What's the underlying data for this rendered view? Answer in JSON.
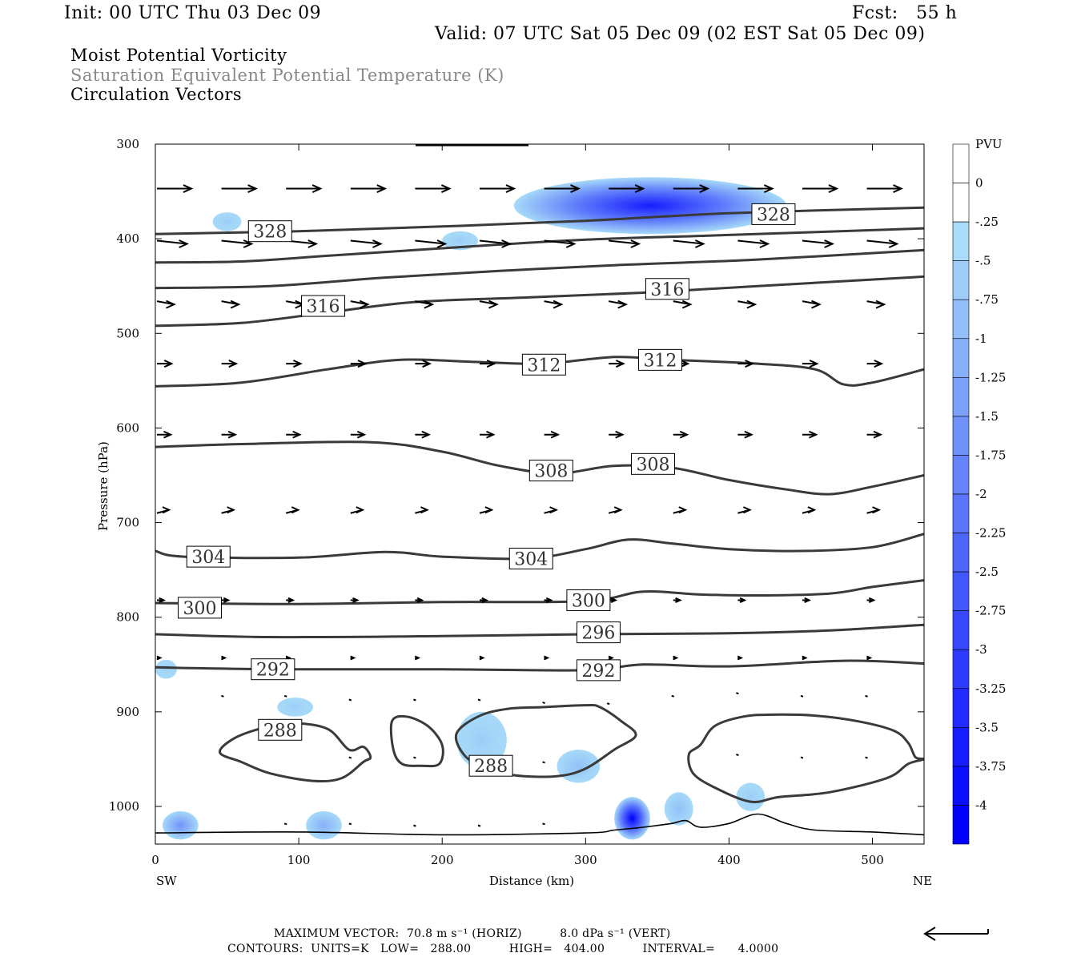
{
  "header": {
    "init": "Init: 00 UTC Thu 03 Dec 09",
    "fcst": "Fcst:   55 h",
    "valid": "Valid: 07 UTC Sat 05 Dec 09 (02 EST Sat 05 Dec 09)",
    "line1": "Moist Potential Vorticity",
    "line2": "Saturation Equivalent Potential Temperature (K)",
    "line3": "Circulation Vectors"
  },
  "footer": {
    "max_vector": "MAXIMUM VECTOR:  70.8 m s⁻¹ (HORIZ)          8.0 dPa s⁻¹ (VERT)",
    "contours": "CONTOURS:  UNITS=K   LOW=   288.00          HIGH=   404.00          INTERVAL=      4.0000"
  },
  "colors": {
    "contour": "#3a3a3a",
    "mpv_light": "#a8dcf8",
    "mpv_dark": "#0000ff"
  },
  "chart_data": {
    "type": "contour-cross-section",
    "title": "Moist Potential Vorticity",
    "xlabel": "Distance (km)",
    "ylabel": "Pressure (hPa)",
    "xlim": [
      0,
      536
    ],
    "ylim": [
      1040,
      300
    ],
    "xticks": [
      0,
      100,
      200,
      300,
      400,
      500
    ],
    "yticks": [
      300,
      400,
      500,
      600,
      700,
      800,
      900,
      1000
    ],
    "x_end_labels": {
      "left": "SW",
      "right": "NE"
    },
    "colorbar": {
      "title": "PVU",
      "levels": [
        "0",
        "-.25",
        "-.5",
        "-.75",
        "-1",
        "-1.25",
        "-1.5",
        "-1.75",
        "-2",
        "-2.25",
        "-2.5",
        "-2.75",
        "-3",
        "-3.25",
        "-3.5",
        "-3.75",
        "-4"
      ]
    },
    "contour_labels": [
      {
        "value": "328",
        "x": 80,
        "p": 392
      },
      {
        "value": "328",
        "x": 431,
        "p": 374
      },
      {
        "value": "316",
        "x": 117,
        "p": 471
      },
      {
        "value": "316",
        "x": 357,
        "p": 453
      },
      {
        "value": "312",
        "x": 271,
        "p": 533
      },
      {
        "value": "312",
        "x": 352,
        "p": 528
      },
      {
        "value": "308",
        "x": 276,
        "p": 645
      },
      {
        "value": "308",
        "x": 347,
        "p": 638
      },
      {
        "value": "304",
        "x": 37,
        "p": 736
      },
      {
        "value": "304",
        "x": 262,
        "p": 738
      },
      {
        "value": "300",
        "x": 31,
        "p": 790
      },
      {
        "value": "300",
        "x": 302,
        "p": 782
      },
      {
        "value": "296",
        "x": 309,
        "p": 816
      },
      {
        "value": "292",
        "x": 82,
        "p": 855
      },
      {
        "value": "292",
        "x": 309,
        "p": 856
      },
      {
        "value": "288",
        "x": 87,
        "p": 919
      },
      {
        "value": "288",
        "x": 234,
        "p": 957
      }
    ],
    "contours": [
      {
        "level": 328,
        "points": [
          [
            0,
            395
          ],
          [
            100,
            392
          ],
          [
            200,
            387
          ],
          [
            300,
            381
          ],
          [
            400,
            373
          ],
          [
            536,
            367
          ]
        ]
      },
      {
        "level": 324,
        "points": [
          [
            0,
            425
          ],
          [
            60,
            424
          ],
          [
            120,
            418
          ],
          [
            200,
            410
          ],
          [
            300,
            401
          ],
          [
            400,
            396
          ],
          [
            536,
            389
          ]
        ]
      },
      {
        "level": 320,
        "points": [
          [
            0,
            452
          ],
          [
            80,
            450
          ],
          [
            160,
            441
          ],
          [
            240,
            434
          ],
          [
            320,
            428
          ],
          [
            420,
            422
          ],
          [
            536,
            412
          ]
        ]
      },
      {
        "level": 316,
        "points": [
          [
            0,
            492
          ],
          [
            60,
            489
          ],
          [
            120,
            478
          ],
          [
            180,
            467
          ],
          [
            260,
            462
          ],
          [
            340,
            457
          ],
          [
            420,
            450
          ],
          [
            536,
            440
          ]
        ]
      },
      {
        "level": 312,
        "points": [
          [
            0,
            556
          ],
          [
            60,
            552
          ],
          [
            120,
            538
          ],
          [
            170,
            528
          ],
          [
            220,
            530
          ],
          [
            270,
            532
          ],
          [
            320,
            525
          ],
          [
            360,
            528
          ],
          [
            420,
            532
          ],
          [
            460,
            538
          ],
          [
            480,
            554
          ],
          [
            500,
            552
          ],
          [
            536,
            538
          ]
        ]
      },
      {
        "level": 308,
        "points": [
          [
            0,
            620
          ],
          [
            60,
            617
          ],
          [
            150,
            615
          ],
          [
            200,
            625
          ],
          [
            240,
            640
          ],
          [
            280,
            648
          ],
          [
            320,
            640
          ],
          [
            360,
            642
          ],
          [
            400,
            655
          ],
          [
            440,
            665
          ],
          [
            470,
            670
          ],
          [
            500,
            662
          ],
          [
            536,
            650
          ]
        ]
      },
      {
        "level": 304,
        "points": [
          [
            0,
            730
          ],
          [
            20,
            736
          ],
          [
            100,
            737
          ],
          [
            160,
            731
          ],
          [
            200,
            736
          ],
          [
            260,
            738
          ],
          [
            300,
            728
          ],
          [
            330,
            718
          ],
          [
            360,
            722
          ],
          [
            400,
            728
          ],
          [
            450,
            730
          ],
          [
            500,
            726
          ],
          [
            536,
            712
          ]
        ]
      },
      {
        "level": 300,
        "points": [
          [
            0,
            785
          ],
          [
            100,
            786
          ],
          [
            200,
            784
          ],
          [
            300,
            783
          ],
          [
            340,
            773
          ],
          [
            380,
            776
          ],
          [
            420,
            777
          ],
          [
            470,
            775
          ],
          [
            500,
            768
          ],
          [
            536,
            761
          ]
        ]
      },
      {
        "level": 296,
        "points": [
          [
            0,
            818
          ],
          [
            80,
            821
          ],
          [
            200,
            820
          ],
          [
            300,
            818
          ],
          [
            400,
            817
          ],
          [
            470,
            814
          ],
          [
            536,
            808
          ]
        ]
      },
      {
        "level": 292,
        "points": [
          [
            0,
            853
          ],
          [
            80,
            855
          ],
          [
            200,
            855
          ],
          [
            300,
            856
          ],
          [
            340,
            850
          ],
          [
            400,
            852
          ],
          [
            480,
            846
          ],
          [
            536,
            849
          ]
        ]
      }
    ],
    "closed_contours": [
      {
        "level": 288,
        "points": [
          [
            45,
            943
          ],
          [
            55,
            928
          ],
          [
            75,
            917
          ],
          [
            95,
            912
          ],
          [
            120,
            918
          ],
          [
            135,
            940
          ],
          [
            145,
            937
          ],
          [
            150,
            948
          ],
          [
            145,
            953
          ],
          [
            130,
            970
          ],
          [
            110,
            973
          ],
          [
            80,
            965
          ],
          [
            60,
            953
          ]
        ]
      },
      {
        "level": 288,
        "points": [
          [
            165,
            910
          ],
          [
            175,
            905
          ],
          [
            190,
            915
          ],
          [
            200,
            935
          ],
          [
            198,
            955
          ],
          [
            185,
            957
          ],
          [
            172,
            955
          ],
          [
            166,
            940
          ]
        ]
      },
      {
        "level": 288,
        "points": [
          [
            210,
            923
          ],
          [
            225,
            905
          ],
          [
            245,
            897
          ],
          [
            270,
            895
          ],
          [
            300,
            893
          ],
          [
            310,
            895
          ],
          [
            325,
            910
          ],
          [
            335,
            925
          ],
          [
            320,
            940
          ],
          [
            300,
            960
          ],
          [
            280,
            968
          ],
          [
            250,
            967
          ],
          [
            228,
            958
          ],
          [
            215,
            945
          ]
        ]
      },
      {
        "level": 288,
        "points": [
          [
            380,
            935
          ],
          [
            390,
            915
          ],
          [
            410,
            905
          ],
          [
            430,
            903
          ],
          [
            460,
            904
          ],
          [
            490,
            910
          ],
          [
            515,
            920
          ],
          [
            525,
            933
          ],
          [
            530,
            948
          ],
          [
            536,
            950
          ],
          [
            525,
            955
          ],
          [
            510,
            970
          ],
          [
            470,
            985
          ],
          [
            435,
            990
          ],
          [
            415,
            995
          ],
          [
            390,
            980
          ],
          [
            375,
            965
          ],
          [
            372,
            945
          ]
        ]
      }
    ],
    "mpv_regions": [
      {
        "min_pvu": -3.5,
        "x": [
          250,
          440
        ],
        "p": [
          335,
          395
        ]
      },
      {
        "min_pvu": -0.5,
        "x": [
          40,
          60
        ],
        "p": [
          372,
          392
        ]
      },
      {
        "min_pvu": -0.5,
        "x": [
          200,
          225
        ],
        "p": [
          392,
          412
        ]
      },
      {
        "min_pvu": -0.5,
        "x": [
          0,
          15
        ],
        "p": [
          845,
          865
        ]
      },
      {
        "min_pvu": -0.5,
        "x": [
          85,
          110
        ],
        "p": [
          885,
          905
        ]
      },
      {
        "min_pvu": -0.5,
        "x": [
          210,
          245
        ],
        "p": [
          900,
          960
        ]
      },
      {
        "min_pvu": -0.75,
        "x": [
          280,
          310
        ],
        "p": [
          940,
          975
        ]
      },
      {
        "min_pvu": -4,
        "x": [
          320,
          345
        ],
        "p": [
          990,
          1035
        ]
      },
      {
        "min_pvu": -1.5,
        "x": [
          5,
          30
        ],
        "p": [
          1005,
          1035
        ]
      },
      {
        "min_pvu": -1,
        "x": [
          105,
          130
        ],
        "p": [
          1005,
          1035
        ]
      },
      {
        "min_pvu": -0.75,
        "x": [
          355,
          375
        ],
        "p": [
          985,
          1020
        ]
      },
      {
        "min_pvu": -0.5,
        "x": [
          405,
          425
        ],
        "p": [
          975,
          1005
        ]
      }
    ],
    "surface": {
      "points": [
        [
          0,
          1028
        ],
        [
          100,
          1027
        ],
        [
          200,
          1030
        ],
        [
          300,
          1028
        ],
        [
          320,
          1025
        ],
        [
          340,
          1022
        ],
        [
          360,
          1018
        ],
        [
          370,
          1015
        ],
        [
          380,
          1022
        ],
        [
          400,
          1018
        ],
        [
          420,
          1008
        ],
        [
          440,
          1018
        ],
        [
          460,
          1025
        ],
        [
          500,
          1027
        ],
        [
          536,
          1030
        ]
      ]
    },
    "vectors": [
      {
        "p": 347,
        "xs": [
          0,
          45,
          90,
          135,
          180,
          225,
          270,
          315,
          360,
          405,
          450,
          495
        ],
        "len": 40,
        "dp": 0
      },
      {
        "p": 402,
        "xs": [
          0,
          45,
          90,
          135,
          180,
          225,
          270,
          315,
          360,
          405,
          450,
          495
        ],
        "len": 35,
        "dp": 1
      },
      {
        "p": 466,
        "xs": [
          0,
          45,
          90,
          135,
          180,
          225,
          270,
          315,
          360,
          405,
          450,
          495
        ],
        "len": 20,
        "dp": 1
      },
      {
        "p": 532,
        "xs": [
          0,
          45,
          90,
          135,
          180,
          225,
          270,
          315,
          360,
          405,
          450,
          495
        ],
        "len": 17,
        "dp": 0
      },
      {
        "p": 607,
        "xs": [
          0,
          45,
          90,
          135,
          180,
          225,
          270,
          315,
          360,
          405,
          450,
          495
        ],
        "len": 16,
        "dp": 0
      },
      {
        "p": 690,
        "xs": [
          0,
          45,
          90,
          135,
          180,
          225,
          270,
          315,
          360,
          405,
          450,
          495
        ],
        "len": 14,
        "dp": -1
      },
      {
        "p": 782,
        "xs": [
          0,
          45,
          90,
          135,
          180,
          225,
          270,
          315,
          360,
          405,
          450,
          495
        ],
        "len": 8,
        "dp": 0
      },
      {
        "p": 843,
        "xs": [
          0,
          45,
          90,
          135,
          180,
          225,
          270,
          315,
          360,
          405,
          450,
          495
        ],
        "len": 4,
        "dp": 0
      }
    ]
  }
}
